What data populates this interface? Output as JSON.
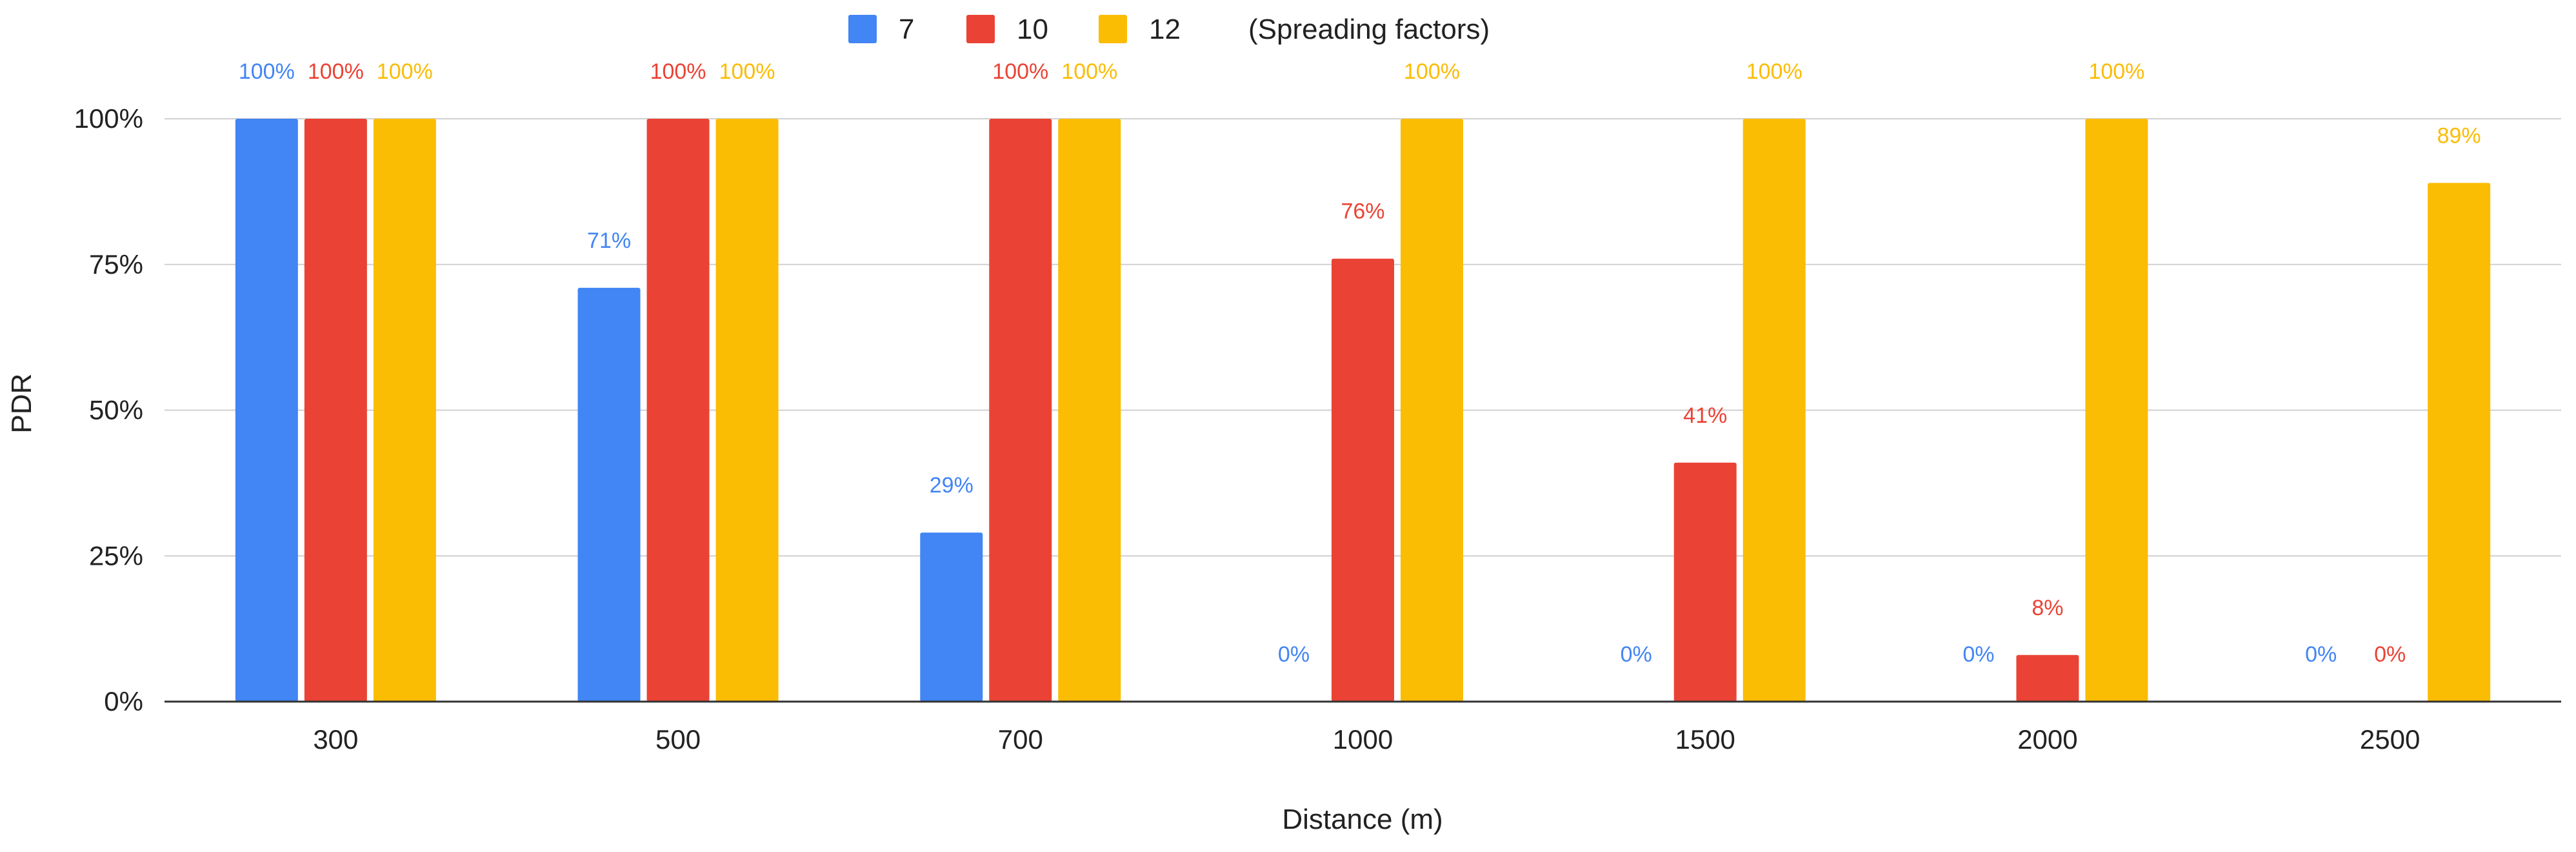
{
  "chart_data": {
    "type": "bar",
    "title": "",
    "xlabel": "Distance (m)",
    "ylabel": "PDR",
    "ylim": [
      0,
      100
    ],
    "yticks": [
      0,
      25,
      50,
      75,
      100
    ],
    "ytick_labels": [
      "0%",
      "25%",
      "50%",
      "75%",
      "100%"
    ],
    "grid": true,
    "legend_position": "top-center",
    "legend_suffix": "(Spreading factors)",
    "categories": [
      "300",
      "500",
      "700",
      "1000",
      "1500",
      "2000",
      "2500"
    ],
    "series": [
      {
        "name": "7",
        "color": "#4285F4",
        "values": [
          100,
          71,
          29,
          0,
          0,
          0,
          0
        ],
        "labels": [
          "100%",
          "71%",
          "29%",
          "0%",
          "0%",
          "0%",
          "0%"
        ]
      },
      {
        "name": "10",
        "color": "#EA4335",
        "values": [
          100,
          100,
          100,
          76,
          41,
          8,
          0
        ],
        "labels": [
          "100%",
          "100%",
          "100%",
          "76%",
          "41%",
          "8%",
          "0%"
        ]
      },
      {
        "name": "12",
        "color": "#FBBC04",
        "values": [
          100,
          100,
          100,
          100,
          100,
          100,
          89
        ],
        "labels": [
          "100%",
          "100%",
          "100%",
          "100%",
          "100%",
          "100%",
          "89%"
        ]
      }
    ]
  }
}
